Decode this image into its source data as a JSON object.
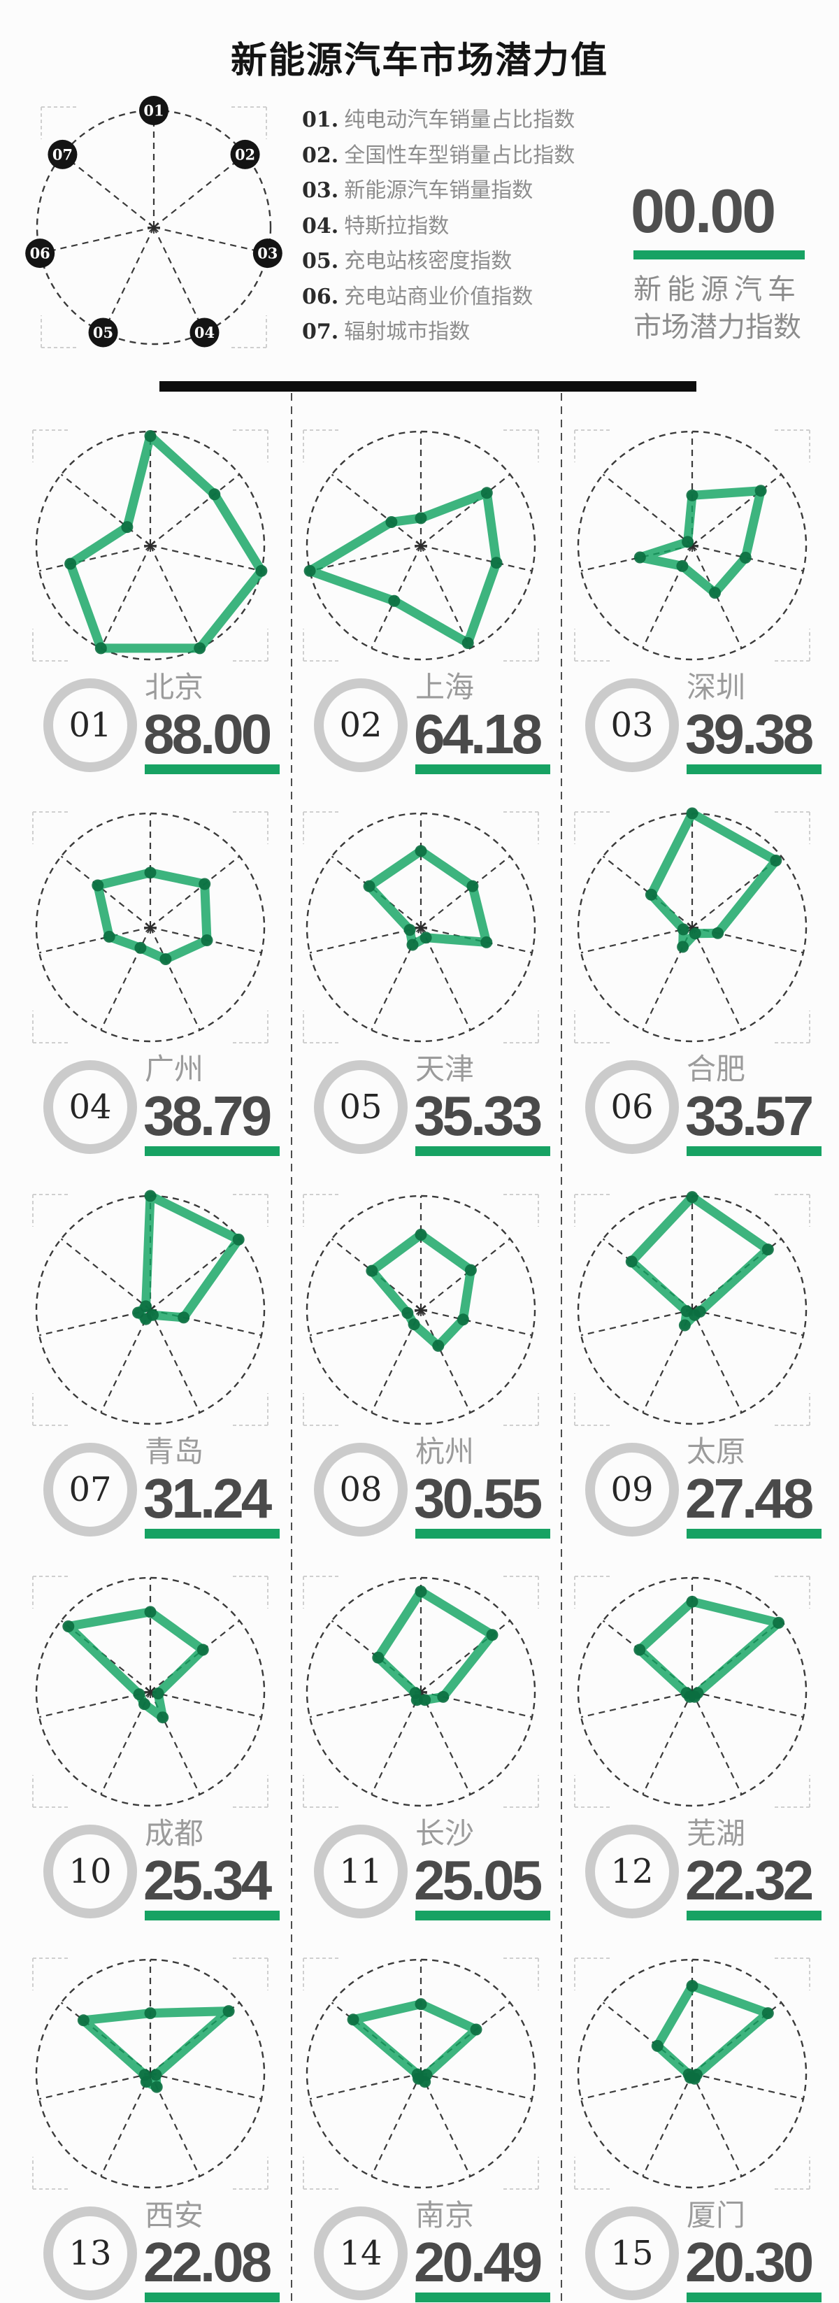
{
  "title": "新能源汽车市场潜力值",
  "header": {
    "score_value": "00.00",
    "score_caption_line1": "新能源汽车",
    "score_caption_line2": "市场潜力指数"
  },
  "legend": {
    "items": [
      {
        "num_label": "01.",
        "label": "纯电动汽车销量占比指数"
      },
      {
        "num_label": "02.",
        "label": "全国性车型销量占比指数"
      },
      {
        "num_label": "03.",
        "label": "新能源汽车销量指数"
      },
      {
        "num_label": "04.",
        "label": "特斯拉指数"
      },
      {
        "num_label": "05.",
        "label": "充电站核密度指数"
      },
      {
        "num_label": "06.",
        "label": "充电站商业价值指数"
      },
      {
        "num_label": "07.",
        "label": "辐射城市指数"
      }
    ],
    "node_labels": [
      "01",
      "02",
      "03",
      "04",
      "05",
      "06",
      "07"
    ]
  },
  "colors": {
    "green": "#17A263",
    "polygon_green": "#12A361",
    "knot_green": "#0B6E40",
    "dark_text": "#4A4A4A",
    "gray_text": "#9B9B9B",
    "ring_gray": "#CBCBCB",
    "line_dark": "#3A3A3A",
    "bracket_gray": "#CFCFCF",
    "bar_black": "#0D0D0D",
    "node_black": "#141414"
  },
  "chart_data": {
    "type": "radar",
    "axes": [
      "纯电动汽车销量占比指数",
      "全国性车型销量占比指数",
      "新能源汽车销量指数",
      "特斯拉指数",
      "充电站核密度指数",
      "充电站商业价值指数",
      "辐射城市指数"
    ],
    "scale_max": 1,
    "layout": {
      "columns": 3,
      "rows": 5,
      "legend_position": "top-left",
      "grid": "dashed"
    },
    "series": [
      {
        "rank": "01",
        "city": "北京",
        "score": "88.00",
        "values": [
          0.96,
          0.72,
          1.0,
          1.0,
          1.0,
          0.72,
          0.26
        ]
      },
      {
        "rank": "02",
        "city": "上海",
        "score": "64.18",
        "values": [
          0.24,
          0.74,
          0.68,
          0.95,
          0.54,
          1.0,
          0.33
        ]
      },
      {
        "rank": "03",
        "city": "深圳",
        "score": "39.38",
        "values": [
          0.44,
          0.77,
          0.48,
          0.46,
          0.2,
          0.47,
          0.05
        ]
      },
      {
        "rank": "04",
        "city": "广州",
        "score": "38.79",
        "values": [
          0.48,
          0.61,
          0.51,
          0.31,
          0.2,
          0.37,
          0.59
        ]
      },
      {
        "rank": "05",
        "city": "天津",
        "score": "35.33",
        "values": [
          0.67,
          0.58,
          0.59,
          0.1,
          0.17,
          0.1,
          0.58
        ]
      },
      {
        "rank": "06",
        "city": "合肥",
        "score": "33.57",
        "values": [
          1.0,
          0.94,
          0.23,
          0.06,
          0.19,
          0.08,
          0.46
        ]
      },
      {
        "rank": "07",
        "city": "青岛",
        "score": "31.24",
        "values": [
          1.0,
          0.99,
          0.3,
          0.05,
          0.09,
          0.11,
          0.05
        ]
      },
      {
        "rank": "08",
        "city": "杭州",
        "score": "30.55",
        "values": [
          0.66,
          0.56,
          0.38,
          0.35,
          0.14,
          0.12,
          0.55
        ]
      },
      {
        "rank": "09",
        "city": "太原",
        "score": "27.48",
        "values": [
          0.99,
          0.85,
          0.07,
          0.05,
          0.15,
          0.05,
          0.68
        ]
      },
      {
        "rank": "10",
        "city": "成都",
        "score": "25.34",
        "values": [
          0.7,
          0.59,
          0.07,
          0.25,
          0.12,
          0.1,
          0.92
        ]
      },
      {
        "rank": "11",
        "city": "长沙",
        "score": "25.05",
        "values": [
          0.88,
          0.8,
          0.2,
          0.08,
          0.08,
          0.05,
          0.48
        ]
      },
      {
        "rank": "12",
        "city": "芜湖",
        "score": "22.32",
        "values": [
          0.79,
          0.97,
          0.05,
          0.05,
          0.05,
          0.05,
          0.59
        ]
      },
      {
        "rank": "13",
        "city": "西安",
        "score": "22.08",
        "values": [
          0.53,
          0.88,
          0.05,
          0.13,
          0.08,
          0.05,
          0.75
        ]
      },
      {
        "rank": "14",
        "city": "南京",
        "score": "20.49",
        "values": [
          0.61,
          0.62,
          0.05,
          0.08,
          0.05,
          0.03,
          0.76
        ]
      },
      {
        "rank": "15",
        "city": "厦门",
        "score": "20.30",
        "values": [
          0.77,
          0.85,
          0.04,
          0.05,
          0.04,
          0.03,
          0.39
        ]
      }
    ]
  }
}
